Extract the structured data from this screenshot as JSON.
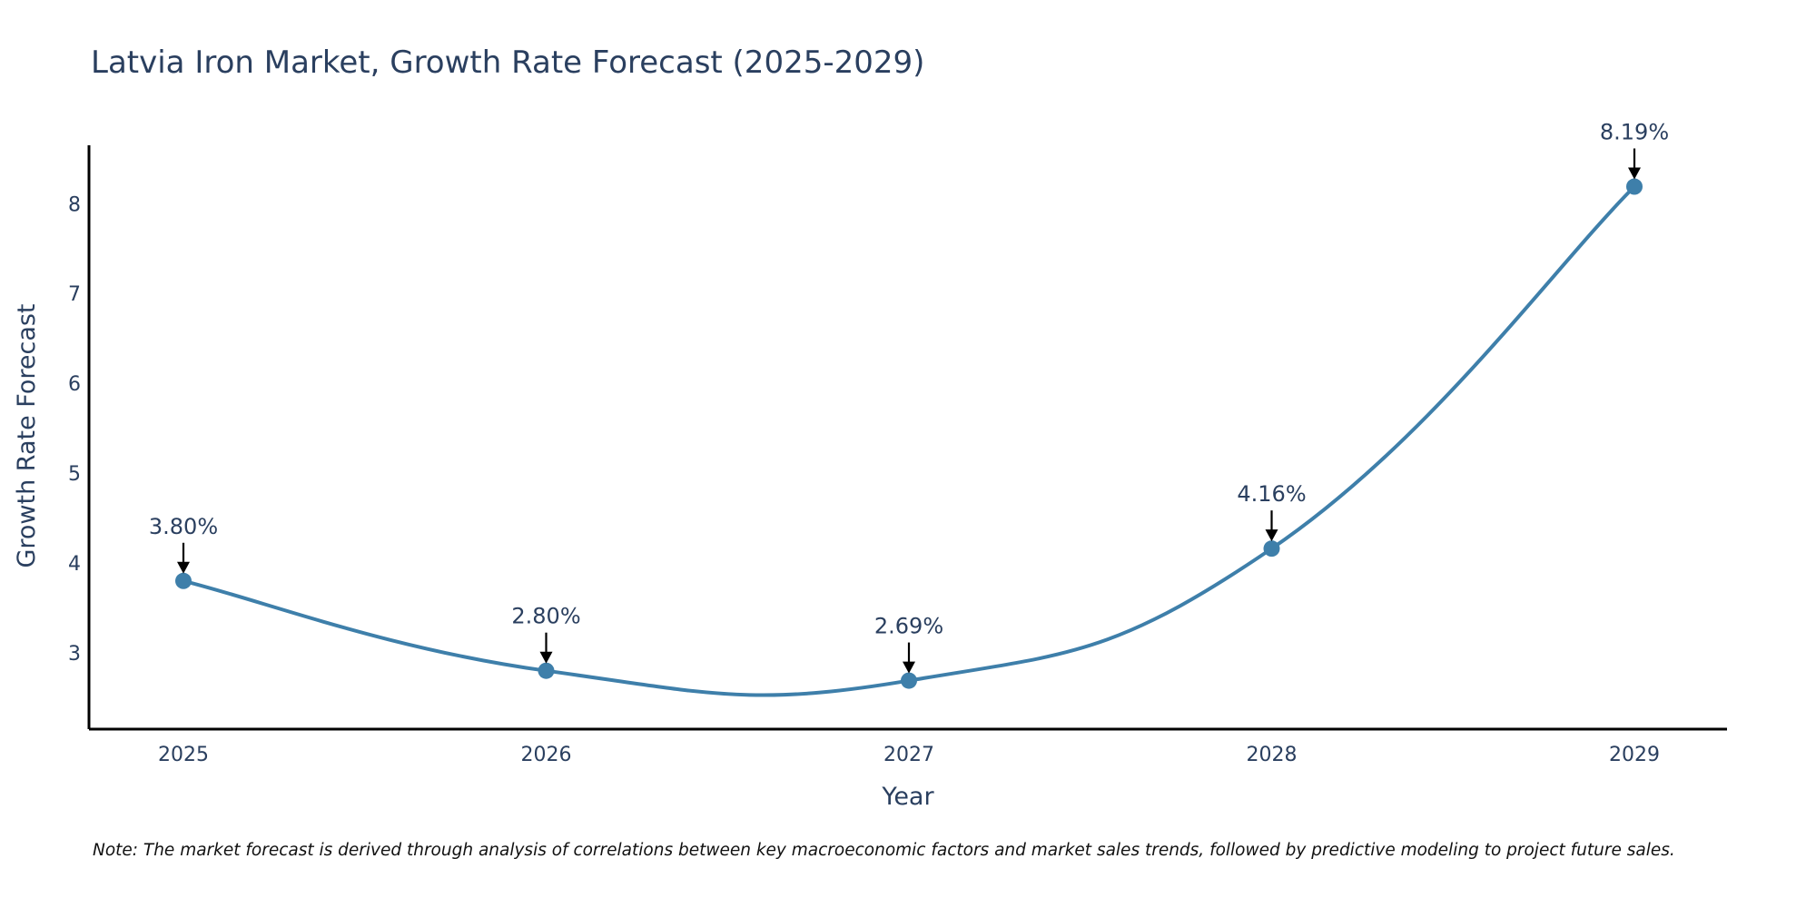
{
  "chart_data": {
    "type": "line",
    "title": "Latvia Iron Market, Growth Rate Forecast (2025-2029)",
    "xlabel": "Year",
    "ylabel": "Growth Rate Forecast",
    "categories": [
      "2025",
      "2026",
      "2027",
      "2028",
      "2029"
    ],
    "series": [
      {
        "name": "Growth Rate Forecast",
        "values": [
          3.8,
          2.8,
          2.69,
          4.16,
          8.19
        ],
        "labels": [
          "3.80%",
          "2.80%",
          "2.69%",
          "4.16%",
          "8.19%"
        ]
      }
    ],
    "ylim": [
      2.15,
      8.65
    ],
    "yticks": [
      "3",
      "4",
      "5",
      "6",
      "7",
      "8"
    ],
    "grid": false,
    "line_shape": "spline",
    "line_color": "#3e7faa",
    "note": "Note: The market forecast is derived through analysis of correlations between key macroeconomic factors and market sales trends, followed by predictive modeling to project future sales."
  }
}
